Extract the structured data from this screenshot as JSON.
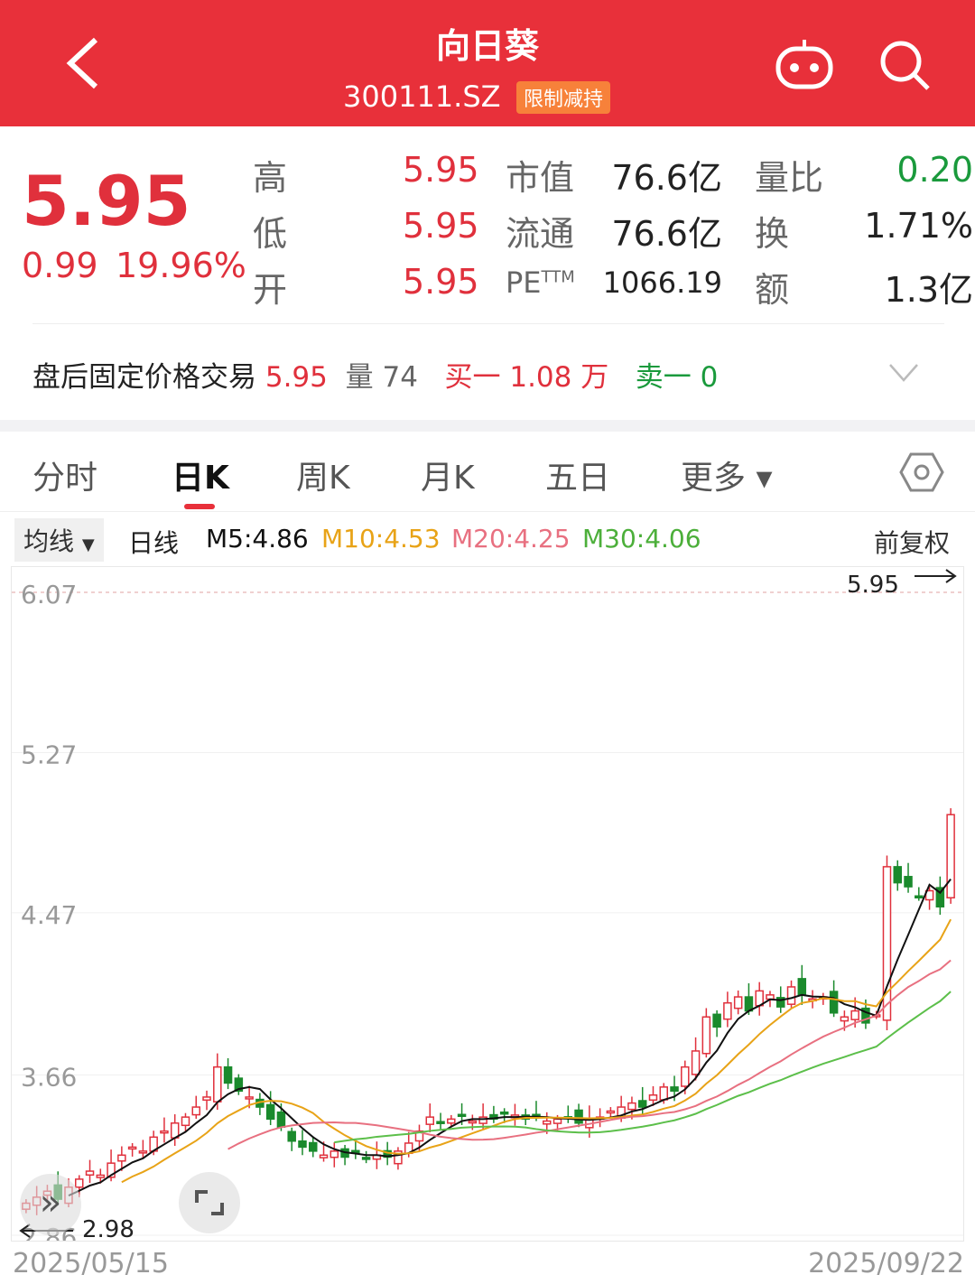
{
  "header": {
    "title": "向日葵",
    "code": "300111.SZ",
    "badge": "限制减持",
    "back_icon": "chevron-left-icon",
    "robot_icon": "robot-icon",
    "search_icon": "search-icon"
  },
  "quote": {
    "price": "5.95",
    "change": "0.99",
    "change_pct": "19.96%",
    "rows": [
      {
        "l1": "高",
        "v1": "5.95",
        "l2": "市值",
        "v2": "76.6亿",
        "l3": "量比",
        "v3": "0.20"
      },
      {
        "l1": "低",
        "v1": "5.95",
        "l2": "流通",
        "v2": "76.6亿",
        "l3": "换",
        "v3": "1.71%"
      },
      {
        "l1": "开",
        "v1": "5.95",
        "l2": "PE",
        "l2sup": "TTM",
        "v2": "1066.19",
        "l3": "额",
        "v3": "1.3亿"
      }
    ]
  },
  "after_hours": {
    "label": "盘后固定价格交易",
    "price": "5.95",
    "vol_label": "量",
    "vol": "74",
    "buy_label": "买一",
    "buy": "1.08 万",
    "sell_label": "卖一",
    "sell": "0"
  },
  "tabs": [
    {
      "label": "分时"
    },
    {
      "label": "日K",
      "active": true
    },
    {
      "label": "周K"
    },
    {
      "label": "月K"
    },
    {
      "label": "五日"
    },
    {
      "label": "更多 ▾"
    }
  ],
  "ma_bar": {
    "selector": "均线",
    "period": "日线",
    "m5": "M5:4.86",
    "m10": "M10:4.53",
    "m20": "M20:4.25",
    "m30": "M30:4.06",
    "adjust": "前复权"
  },
  "colors": {
    "red": "#e0303c",
    "green": "#1a8a2c",
    "m5": "#111111",
    "m10": "#e8a317",
    "m20": "#e87080",
    "m30": "#5cbf4a"
  },
  "chart_data": {
    "type": "candlestick",
    "y_ticks": [
      "6.07",
      "5.27",
      "4.47",
      "3.66",
      "2.86"
    ],
    "ylim": [
      2.86,
      6.07
    ],
    "x_labels": [
      "2025/05/15",
      "2025/09/22"
    ],
    "max_marker": "5.95",
    "min_marker": "2.98",
    "close": [
      3.02,
      3.05,
      3.08,
      3.04,
      3.1,
      3.14,
      3.18,
      3.16,
      3.22,
      3.26,
      3.3,
      3.28,
      3.35,
      3.38,
      3.42,
      3.45,
      3.5,
      3.55,
      3.7,
      3.62,
      3.58,
      3.55,
      3.5,
      3.44,
      3.4,
      3.33,
      3.3,
      3.28,
      3.26,
      3.28,
      3.25,
      3.27,
      3.24,
      3.26,
      3.25,
      3.28,
      3.32,
      3.38,
      3.45,
      3.42,
      3.44,
      3.46,
      3.43,
      3.45,
      3.44,
      3.47,
      3.46,
      3.44,
      3.45,
      3.43,
      3.44,
      3.45,
      3.42,
      3.44,
      3.45,
      3.48,
      3.5,
      3.52,
      3.5,
      3.56,
      3.6,
      3.58,
      3.7,
      3.78,
      3.95,
      3.9,
      4.02,
      4.05,
      3.98,
      4.08,
      4.06,
      4.0,
      4.1,
      4.06,
      4.04,
      4.05,
      3.97,
      3.95,
      3.98,
      3.92,
      3.96,
      4.7,
      4.62,
      4.6,
      4.55,
      4.58,
      4.5,
      4.96
    ]
  }
}
